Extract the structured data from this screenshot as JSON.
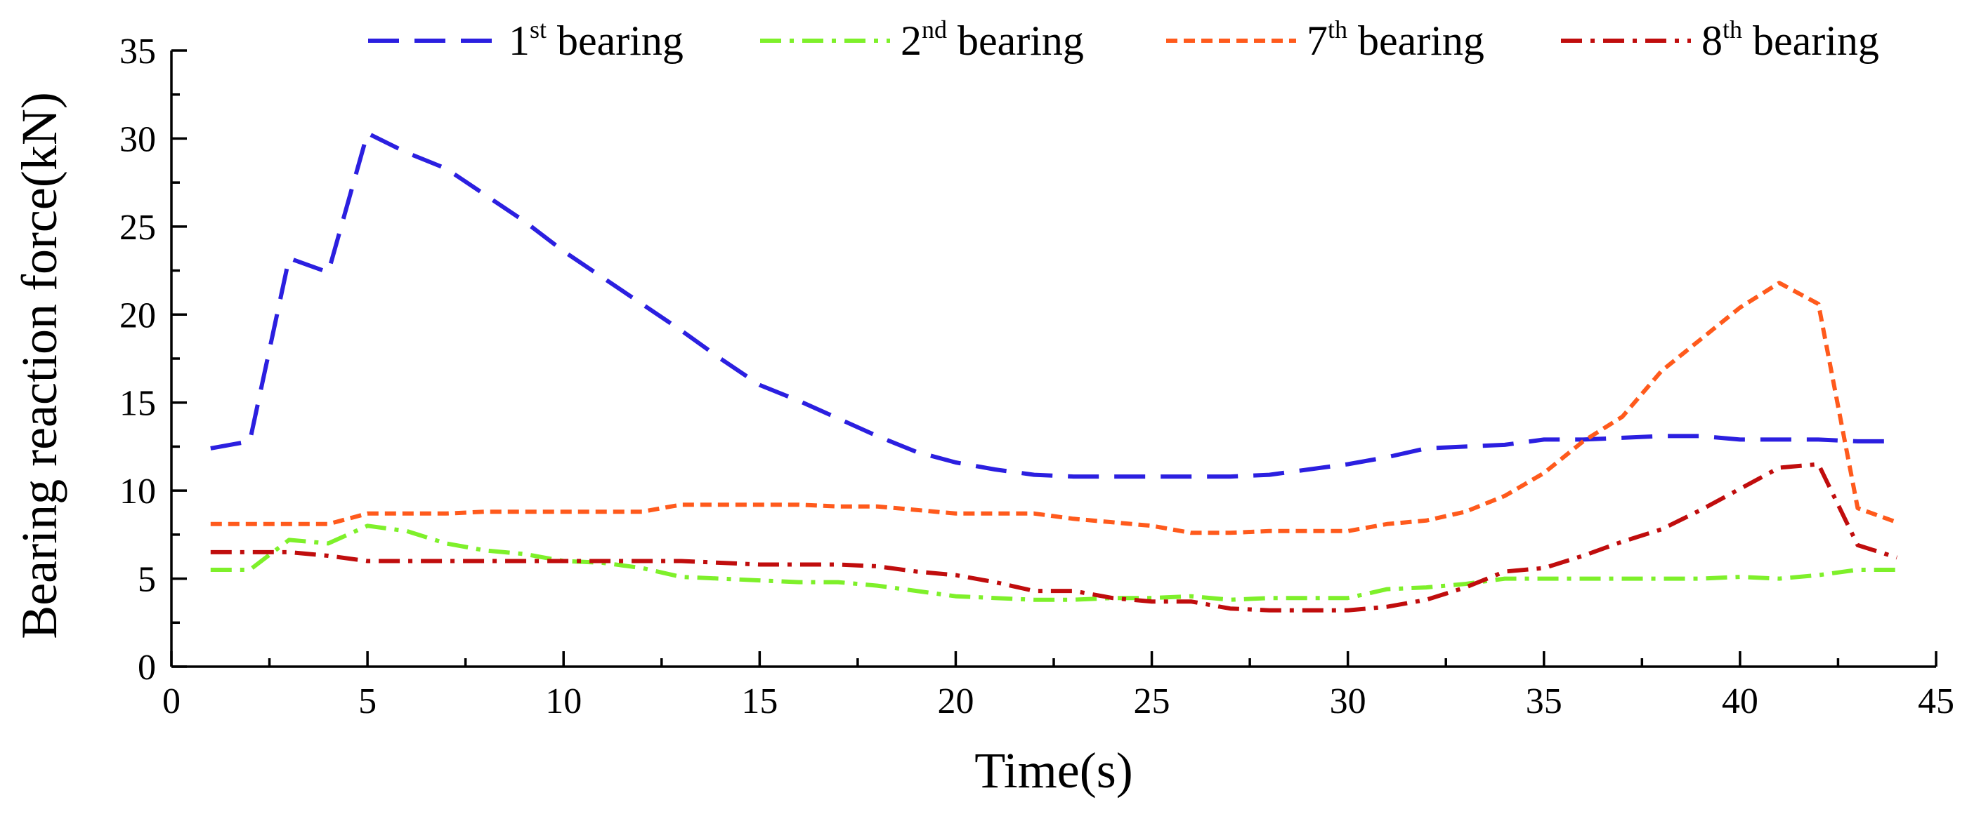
{
  "chart_data": {
    "type": "line",
    "title": "",
    "xlabel": "Time(s)",
    "ylabel": "Bearing reaction force(kN)",
    "xlim": [
      0,
      45
    ],
    "ylim": [
      0,
      35
    ],
    "xticks": [
      0,
      5,
      10,
      15,
      20,
      25,
      30,
      35,
      40,
      45
    ],
    "yticks": [
      0,
      5,
      10,
      15,
      20,
      25,
      30,
      35
    ],
    "grid": false,
    "legend_position": "top",
    "series": [
      {
        "name": "1st bearing",
        "label_base": "1",
        "label_sup": "st",
        "label_rest": "bearing",
        "color": "#2B1FE0",
        "dash": "dash",
        "x": [
          1,
          2,
          3,
          4,
          5,
          6,
          7,
          8,
          9,
          10,
          11,
          12,
          13,
          14,
          15,
          16,
          17,
          18,
          19,
          20,
          21,
          22,
          23,
          24,
          25,
          26,
          27,
          28,
          29,
          30,
          31,
          32,
          33,
          34,
          35,
          36,
          37,
          38,
          39,
          40,
          41,
          42,
          43,
          44
        ],
        "y": [
          12.4,
          12.8,
          23.2,
          22.4,
          30.3,
          29.2,
          28.3,
          26.8,
          25.3,
          23.6,
          22.1,
          20.6,
          19.1,
          17.5,
          16.0,
          15.1,
          14.1,
          13.1,
          12.2,
          11.6,
          11.2,
          10.9,
          10.8,
          10.8,
          10.8,
          10.8,
          10.8,
          10.9,
          11.2,
          11.5,
          11.9,
          12.4,
          12.5,
          12.6,
          12.9,
          12.9,
          13.0,
          13.1,
          13.1,
          12.9,
          12.9,
          12.9,
          12.8,
          12.8
        ]
      },
      {
        "name": "2nd bearing",
        "label_base": "2",
        "label_sup": "nd",
        "label_rest": "bearing",
        "color": "#7EF02A",
        "dash": "dashdot",
        "x": [
          1,
          2,
          3,
          4,
          5,
          6,
          7,
          8,
          9,
          10,
          11,
          12,
          13,
          14,
          15,
          16,
          17,
          18,
          19,
          20,
          21,
          22,
          23,
          24,
          25,
          26,
          27,
          28,
          29,
          30,
          31,
          32,
          33,
          34,
          35,
          36,
          37,
          38,
          39,
          40,
          41,
          42,
          43,
          44
        ],
        "y": [
          5.5,
          5.5,
          7.2,
          7.0,
          8.0,
          7.7,
          7.0,
          6.6,
          6.4,
          6.0,
          5.9,
          5.6,
          5.1,
          5.0,
          4.9,
          4.8,
          4.8,
          4.6,
          4.3,
          4.0,
          3.9,
          3.8,
          3.8,
          3.9,
          3.9,
          4.0,
          3.8,
          3.9,
          3.9,
          3.9,
          4.4,
          4.5,
          4.7,
          5.0,
          5.0,
          5.0,
          5.0,
          5.0,
          5.0,
          5.1,
          5.0,
          5.2,
          5.5,
          5.5
        ]
      },
      {
        "name": "7th bearing",
        "label_base": "7",
        "label_sup": "th",
        "label_rest": "bearing",
        "color": "#FF5A1C",
        "dash": "shortdash",
        "x": [
          1,
          2,
          3,
          4,
          5,
          6,
          7,
          8,
          9,
          10,
          11,
          12,
          13,
          14,
          15,
          16,
          17,
          18,
          19,
          20,
          21,
          22,
          23,
          24,
          25,
          26,
          27,
          28,
          29,
          30,
          31,
          32,
          33,
          34,
          35,
          36,
          37,
          38,
          39,
          40,
          41,
          42,
          43,
          44
        ],
        "y": [
          8.1,
          8.1,
          8.1,
          8.1,
          8.7,
          8.7,
          8.7,
          8.8,
          8.8,
          8.8,
          8.8,
          8.8,
          9.2,
          9.2,
          9.2,
          9.2,
          9.1,
          9.1,
          8.9,
          8.7,
          8.7,
          8.7,
          8.4,
          8.2,
          8.0,
          7.6,
          7.6,
          7.7,
          7.7,
          7.7,
          8.1,
          8.3,
          8.8,
          9.7,
          11.0,
          12.8,
          14.2,
          16.8,
          18.6,
          20.4,
          21.8,
          20.6,
          9.0,
          8.2
        ]
      },
      {
        "name": "8th bearing",
        "label_base": "8",
        "label_sup": "th",
        "label_rest": "bearing",
        "color": "#C00D0D",
        "dash": "dashdot",
        "x": [
          1,
          2,
          3,
          4,
          5,
          6,
          7,
          8,
          9,
          10,
          11,
          12,
          13,
          14,
          15,
          16,
          17,
          18,
          19,
          20,
          21,
          22,
          23,
          24,
          25,
          26,
          27,
          28,
          29,
          30,
          31,
          32,
          33,
          34,
          35,
          36,
          37,
          38,
          39,
          40,
          41,
          42,
          43,
          44
        ],
        "y": [
          6.5,
          6.5,
          6.5,
          6.3,
          6.0,
          6.0,
          6.0,
          6.0,
          6.0,
          6.0,
          6.0,
          6.0,
          6.0,
          5.9,
          5.8,
          5.8,
          5.8,
          5.7,
          5.4,
          5.2,
          4.8,
          4.3,
          4.3,
          3.9,
          3.7,
          3.7,
          3.3,
          3.2,
          3.2,
          3.2,
          3.4,
          3.8,
          4.5,
          5.4,
          5.6,
          6.3,
          7.1,
          7.8,
          8.9,
          10.1,
          11.3,
          11.5,
          6.9,
          6.2
        ]
      }
    ]
  }
}
